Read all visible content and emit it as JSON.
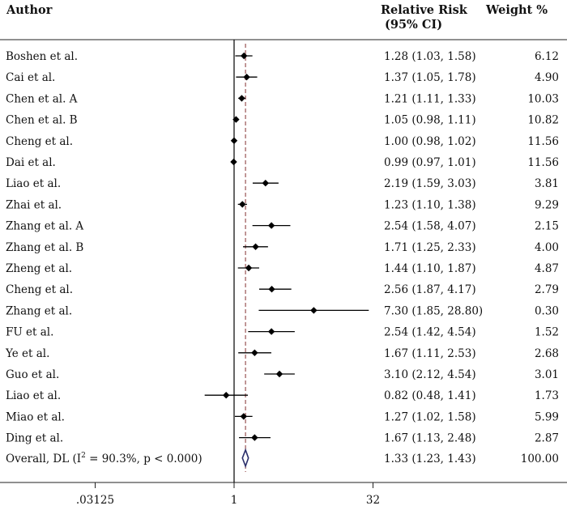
{
  "chart_data": {
    "type": "forest",
    "headers": {
      "author": "Author",
      "effect_line1": "Relative Risk",
      "effect_line2": "(95% CI)",
      "weight": "Weight %"
    },
    "x_scale": "log2",
    "xlim": [
      0.03125,
      32
    ],
    "x_ticks": [
      {
        "value": 0.03125,
        "label": ".03125"
      },
      {
        "value": 1,
        "label": "1"
      },
      {
        "value": 32,
        "label": "32"
      }
    ],
    "null_line": 1,
    "pooled_reference": 1.33,
    "studies": [
      {
        "author": "Boshen et al.",
        "rr": 1.28,
        "lo": 1.03,
        "hi": 1.58,
        "ci_text": "1.28 (1.03, 1.58)",
        "weight": "6.12"
      },
      {
        "author": "Cai et al.",
        "rr": 1.37,
        "lo": 1.05,
        "hi": 1.78,
        "ci_text": "1.37 (1.05, 1.78)",
        "weight": "4.90"
      },
      {
        "author": "Chen et al. A",
        "rr": 1.21,
        "lo": 1.11,
        "hi": 1.33,
        "ci_text": "1.21 (1.11, 1.33)",
        "weight": "10.03"
      },
      {
        "author": "Chen et al. B",
        "rr": 1.05,
        "lo": 0.98,
        "hi": 1.11,
        "ci_text": "1.05 (0.98, 1.11)",
        "weight": "10.82"
      },
      {
        "author": "Cheng et al.",
        "rr": 1.0,
        "lo": 0.98,
        "hi": 1.02,
        "ci_text": "1.00 (0.98, 1.02)",
        "weight": "11.56"
      },
      {
        "author": "Dai et al.",
        "rr": 0.99,
        "lo": 0.97,
        "hi": 1.01,
        "ci_text": "0.99 (0.97, 1.01)",
        "weight": "11.56"
      },
      {
        "author": "Liao et al.",
        "rr": 2.19,
        "lo": 1.59,
        "hi": 3.03,
        "ci_text": "2.19 (1.59, 3.03)",
        "weight": "3.81"
      },
      {
        "author": "Zhai et al.",
        "rr": 1.23,
        "lo": 1.1,
        "hi": 1.38,
        "ci_text": "1.23 (1.10, 1.38)",
        "weight": "9.29"
      },
      {
        "author": "Zhang  et al. A",
        "rr": 2.54,
        "lo": 1.58,
        "hi": 4.07,
        "ci_text": "2.54 (1.58, 4.07)",
        "weight": "2.15"
      },
      {
        "author": "Zhang et al. B",
        "rr": 1.71,
        "lo": 1.25,
        "hi": 2.33,
        "ci_text": "1.71 (1.25, 2.33)",
        "weight": "4.00"
      },
      {
        "author": "Zheng et al.",
        "rr": 1.44,
        "lo": 1.1,
        "hi": 1.87,
        "ci_text": "1.44 (1.10, 1.87)",
        "weight": "4.87"
      },
      {
        "author": "Cheng et al.",
        "rr": 2.56,
        "lo": 1.87,
        "hi": 4.17,
        "ci_text": "2.56 (1.87, 4.17)",
        "weight": "2.79"
      },
      {
        "author": "Zhang et al.",
        "rr": 7.3,
        "lo": 1.85,
        "hi": 28.8,
        "ci_text": "7.30 (1.85, 28.80)",
        "weight": "0.30"
      },
      {
        "author": "FU et al.",
        "rr": 2.54,
        "lo": 1.42,
        "hi": 4.54,
        "ci_text": "2.54 (1.42, 4.54)",
        "weight": "1.52"
      },
      {
        "author": "Ye et al.",
        "rr": 1.67,
        "lo": 1.11,
        "hi": 2.53,
        "ci_text": "1.67 (1.11, 2.53)",
        "weight": "2.68"
      },
      {
        "author": "Guo et al.",
        "rr": 3.1,
        "lo": 2.12,
        "hi": 4.54,
        "ci_text": "3.10 (2.12, 4.54)",
        "weight": "3.01"
      },
      {
        "author": "Liao et al.",
        "rr": 0.82,
        "lo": 0.48,
        "hi": 1.41,
        "ci_text": "0.82 (0.48, 1.41)",
        "weight": "1.73"
      },
      {
        "author": "Miao et al.",
        "rr": 1.27,
        "lo": 1.02,
        "hi": 1.58,
        "ci_text": "1.27 (1.02, 1.58)",
        "weight": "5.99"
      },
      {
        "author": "Ding et al.",
        "rr": 1.67,
        "lo": 1.13,
        "hi": 2.48,
        "ci_text": "1.67 (1.13, 2.48)",
        "weight": "2.87"
      }
    ],
    "overall": {
      "label_prefix": "Overall, DL (I",
      "label_sup": "2",
      "label_suffix": " = 90.3%, p < 0.000)",
      "rr": 1.33,
      "lo": 1.23,
      "hi": 1.43,
      "ci_text": "1.33 (1.23, 1.43)",
      "weight": "100.00"
    }
  }
}
